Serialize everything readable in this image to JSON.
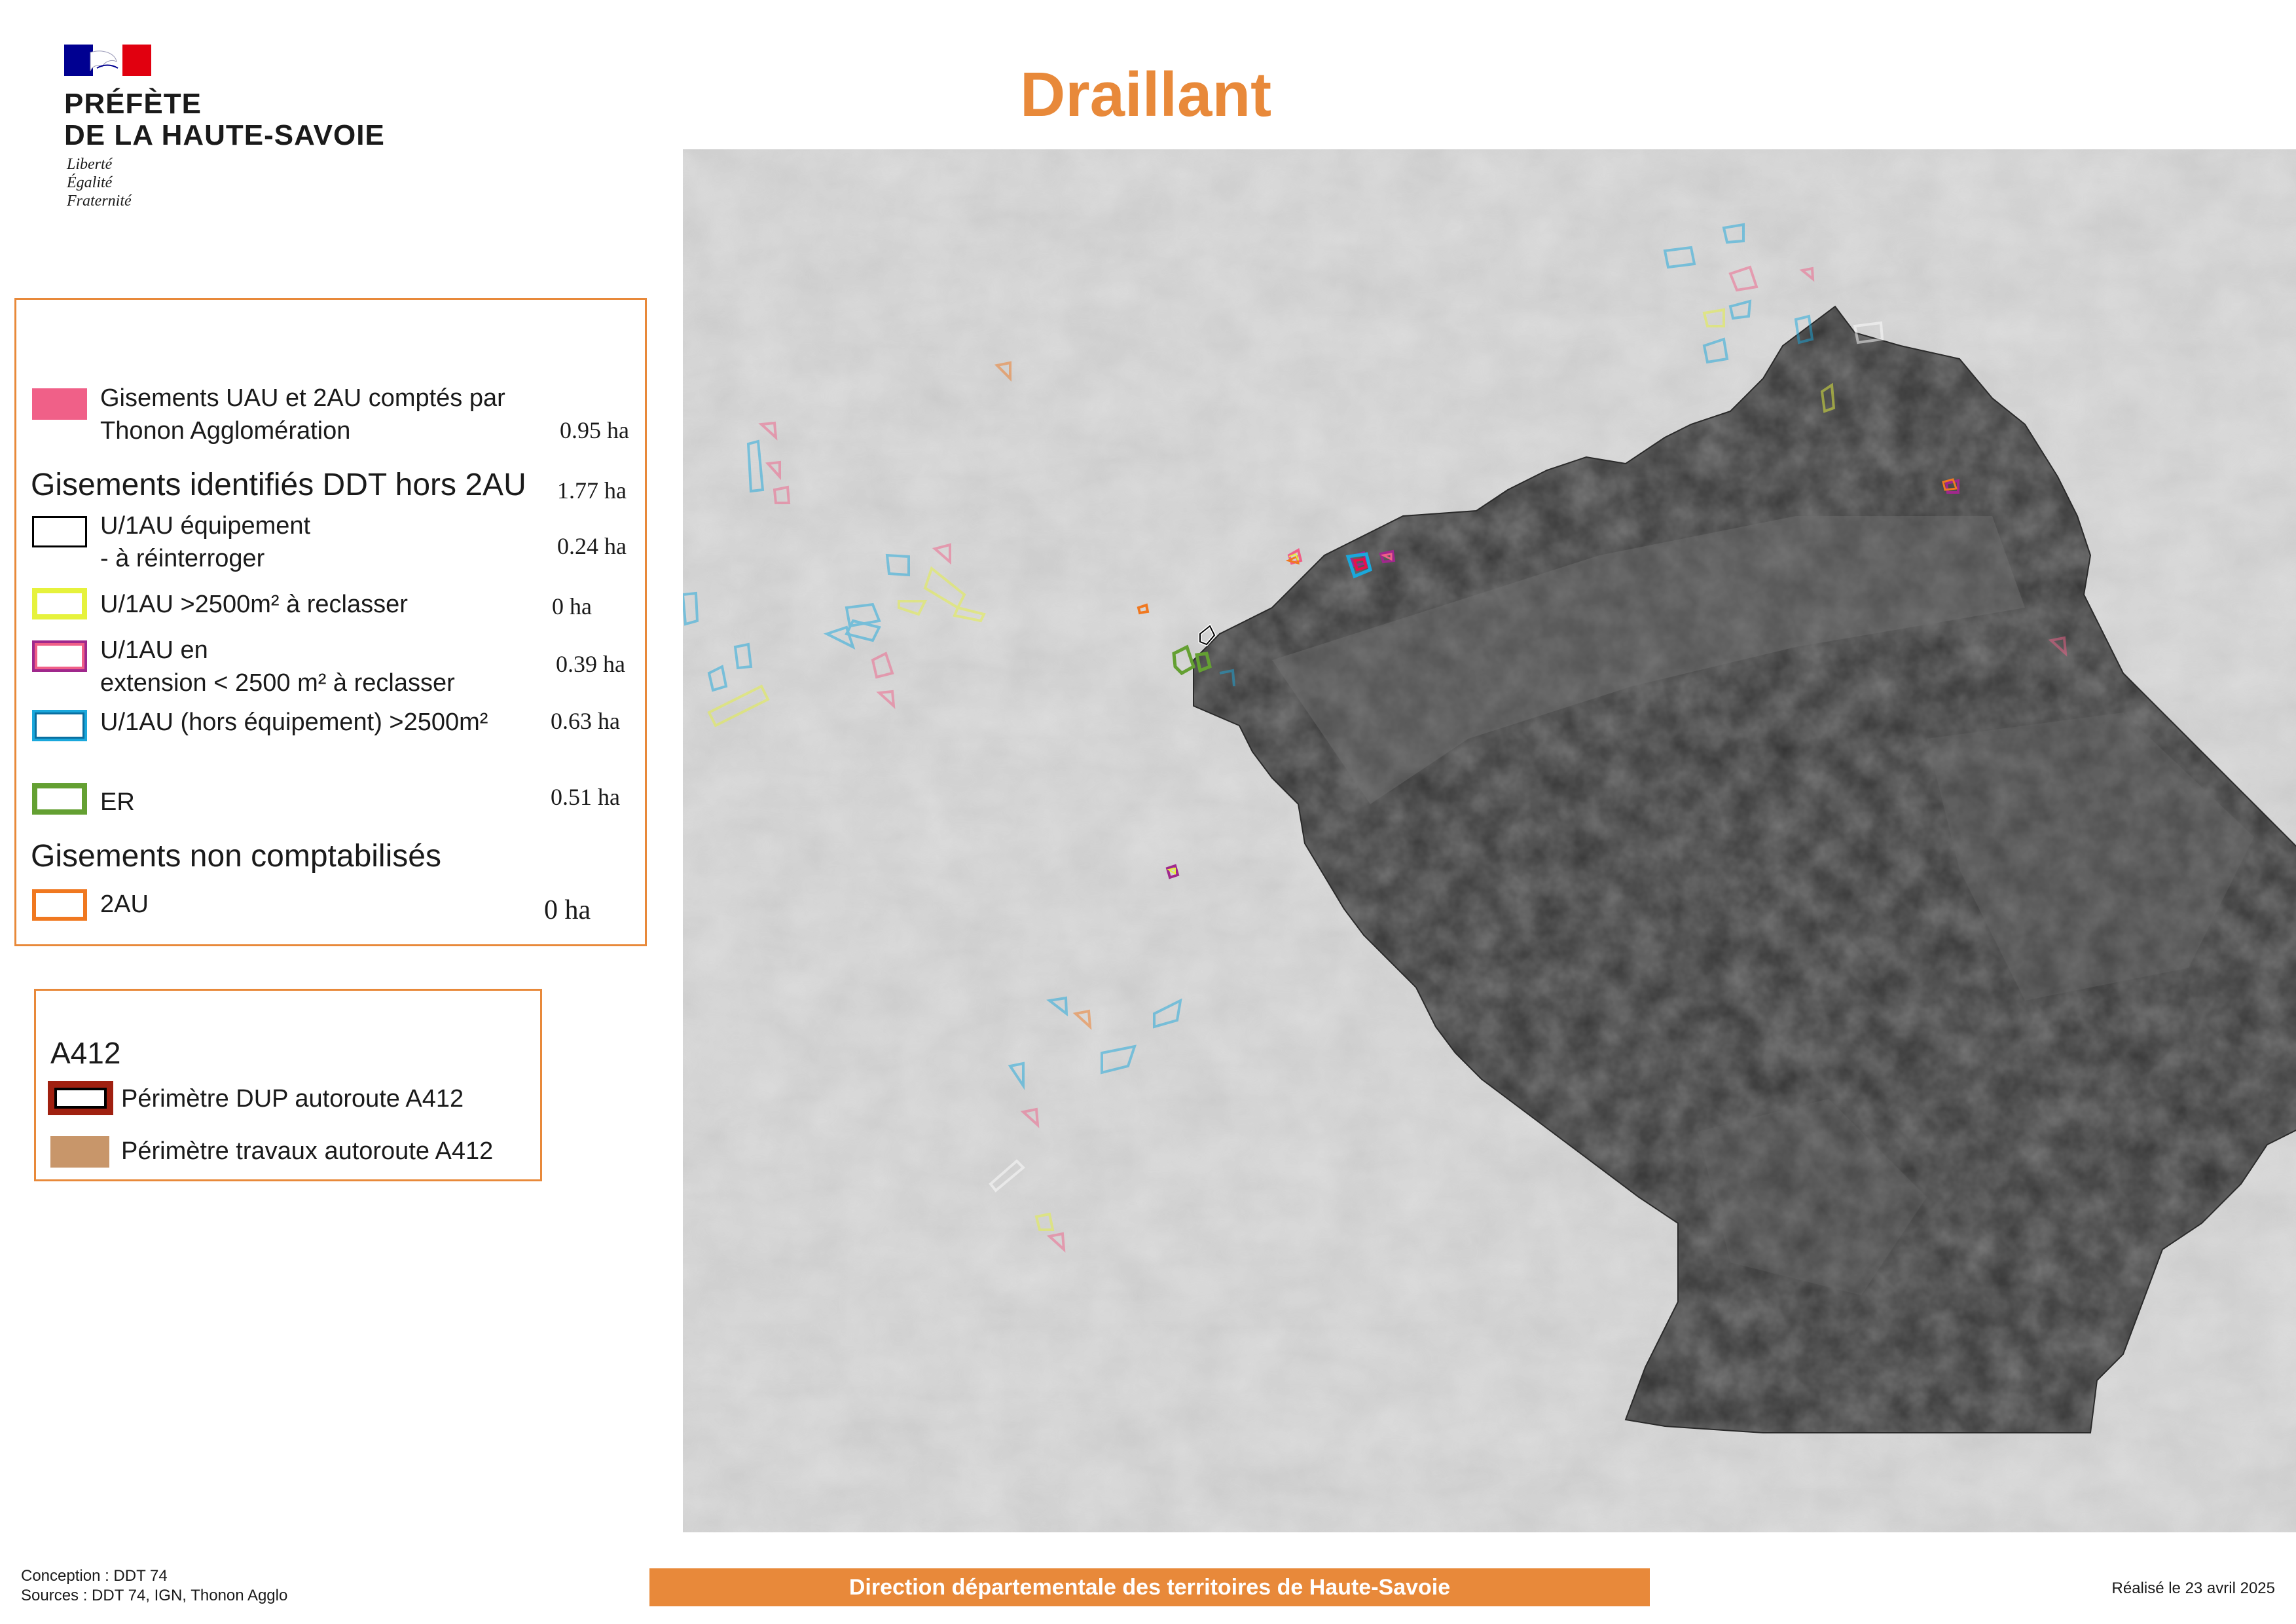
{
  "header": {
    "prefecture_line1": "PRÉFÈTE",
    "prefecture_line2": "DE LA HAUTE-SAVOIE",
    "motto": [
      "Liberté",
      "Égalité",
      "Fraternité"
    ],
    "flag_icon": "french-republic-marianne-logo",
    "title": "Draillant"
  },
  "colors": {
    "accent": "#e8893a",
    "pink": "#f06088",
    "yellow": "#e6f23c",
    "purple": "#a0288c",
    "cyan": "#1aa8dc",
    "green": "#64a032",
    "orange": "#f07820",
    "dup_red": "#a02010",
    "works_tan": "#c8966a"
  },
  "legend": {
    "items": [
      {
        "kind": "fill",
        "color": "pink",
        "label": "Gisements UAU et 2AU comptés par Thonon Agglomération",
        "label_lines": [
          "Gisements UAU et 2AU comptés par",
          "Thonon Agglomération"
        ],
        "value": "0.95 ha"
      },
      {
        "kind": "heading",
        "label": "Gisements identifiés DDT hors 2AU",
        "value": "1.77 ha"
      },
      {
        "kind": "outline",
        "color": "black",
        "label_lines": [
          "U/1AU équipement",
          "- à réinterroger"
        ],
        "value": "0.24 ha"
      },
      {
        "kind": "outline",
        "color": "yellow",
        "label_lines": [
          "U/1AU >2500m²  à reclasser"
        ],
        "value": "0 ha"
      },
      {
        "kind": "outline",
        "color": "purple",
        "label_lines": [
          "U/1AU en",
          "extension  < 2500 m² à reclasser"
        ],
        "value": "0.39 ha"
      },
      {
        "kind": "outline",
        "color": "cyan",
        "label_lines": [
          "U/1AU (hors équipement) >2500m²"
        ],
        "value": "0.63 ha"
      },
      {
        "kind": "outline",
        "color": "green",
        "label_lines": [
          "ER"
        ],
        "value": "0.51 ha"
      },
      {
        "kind": "heading",
        "label": "Gisements non comptabilisés"
      },
      {
        "kind": "outline",
        "color": "orange",
        "label_lines": [
          "2AU"
        ],
        "value": "0 ha"
      }
    ]
  },
  "a412": {
    "title": "A412",
    "dup_label": "Périmètre DUP autoroute A412",
    "works_label": "Périmètre travaux autoroute A412"
  },
  "footer": {
    "conception": "Conception : DDT 74",
    "sources": "Sources : DDT 74, IGN, Thonon Agglo",
    "agency": "Direction départementale des territoires de Haute-Savoie",
    "date": "Réalisé le 23 avril 2025"
  }
}
